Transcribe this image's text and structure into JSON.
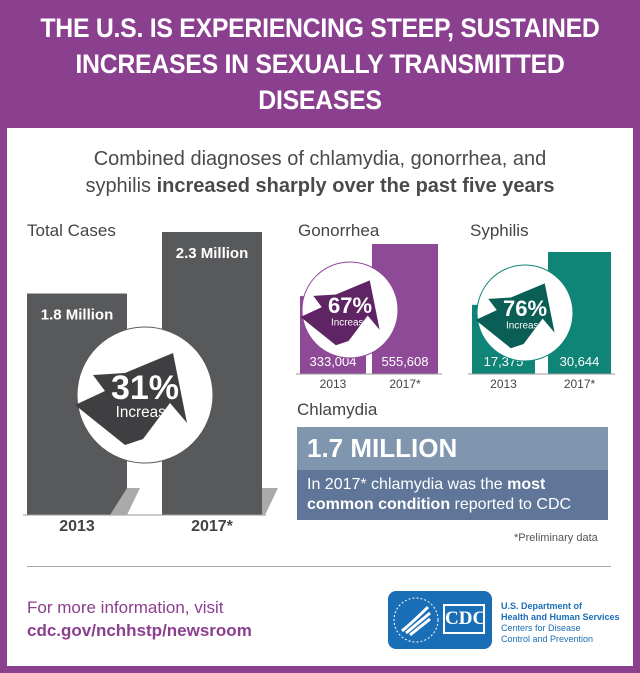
{
  "header": {
    "line1": "THE U.S. IS EXPERIENCING STEEP, SUSTAINED",
    "line2": "INCREASES IN SEXUALLY TRANSMITTED DISEASES"
  },
  "subtitle": {
    "line1": "Combined diagnoses of chlamydia, gonorrhea, and",
    "line2_plain": "syphilis ",
    "line2_bold": "increased sharply over the past five years"
  },
  "colors": {
    "header": "#8b3f8f",
    "total": "#58595b",
    "gonorrhea": "#8e4a97",
    "syphilis": "#0e8577",
    "chlamydia_top": "#8096ae",
    "chlamydia_bottom": "#5f7698"
  },
  "chart_data": [
    {
      "type": "bar",
      "title": "Total Cases",
      "categories": [
        "2013",
        "2017*"
      ],
      "values": [
        1.8,
        2.3
      ],
      "value_labels": [
        "1.8 Million",
        "2.3 Million"
      ],
      "annotation": {
        "pct": "31%",
        "text": "Increase"
      }
    },
    {
      "type": "bar",
      "title": "Gonorrhea",
      "categories": [
        "2013",
        "2017*"
      ],
      "values": [
        333004,
        555608
      ],
      "value_labels": [
        "333,004",
        "555,608"
      ],
      "annotation": {
        "pct": "67%",
        "text": "Increase"
      }
    },
    {
      "type": "bar",
      "title": "Syphilis",
      "categories": [
        "2013",
        "2017*"
      ],
      "values": [
        17375,
        30644
      ],
      "value_labels": [
        "17,375",
        "30,644"
      ],
      "annotation": {
        "pct": "76%",
        "text": "Increase"
      }
    }
  ],
  "chlamydia": {
    "title": "Chlamydia",
    "value": "1.7 MILLION",
    "text1": "In 2017* chlamydia was the ",
    "bold1": "most",
    "bold2": "common condition",
    "text2": " reported to CDC"
  },
  "note": "*Preliminary data",
  "footer": {
    "line1": "For more information, visit",
    "link": "cdc.gov/nchhstp/newsroom",
    "cdc": "CDC",
    "hhs1": "U.S. Department of",
    "hhs2": "Health and Human Services",
    "cdc1": "Centers for Disease",
    "cdc2": "Control and Prevention"
  }
}
